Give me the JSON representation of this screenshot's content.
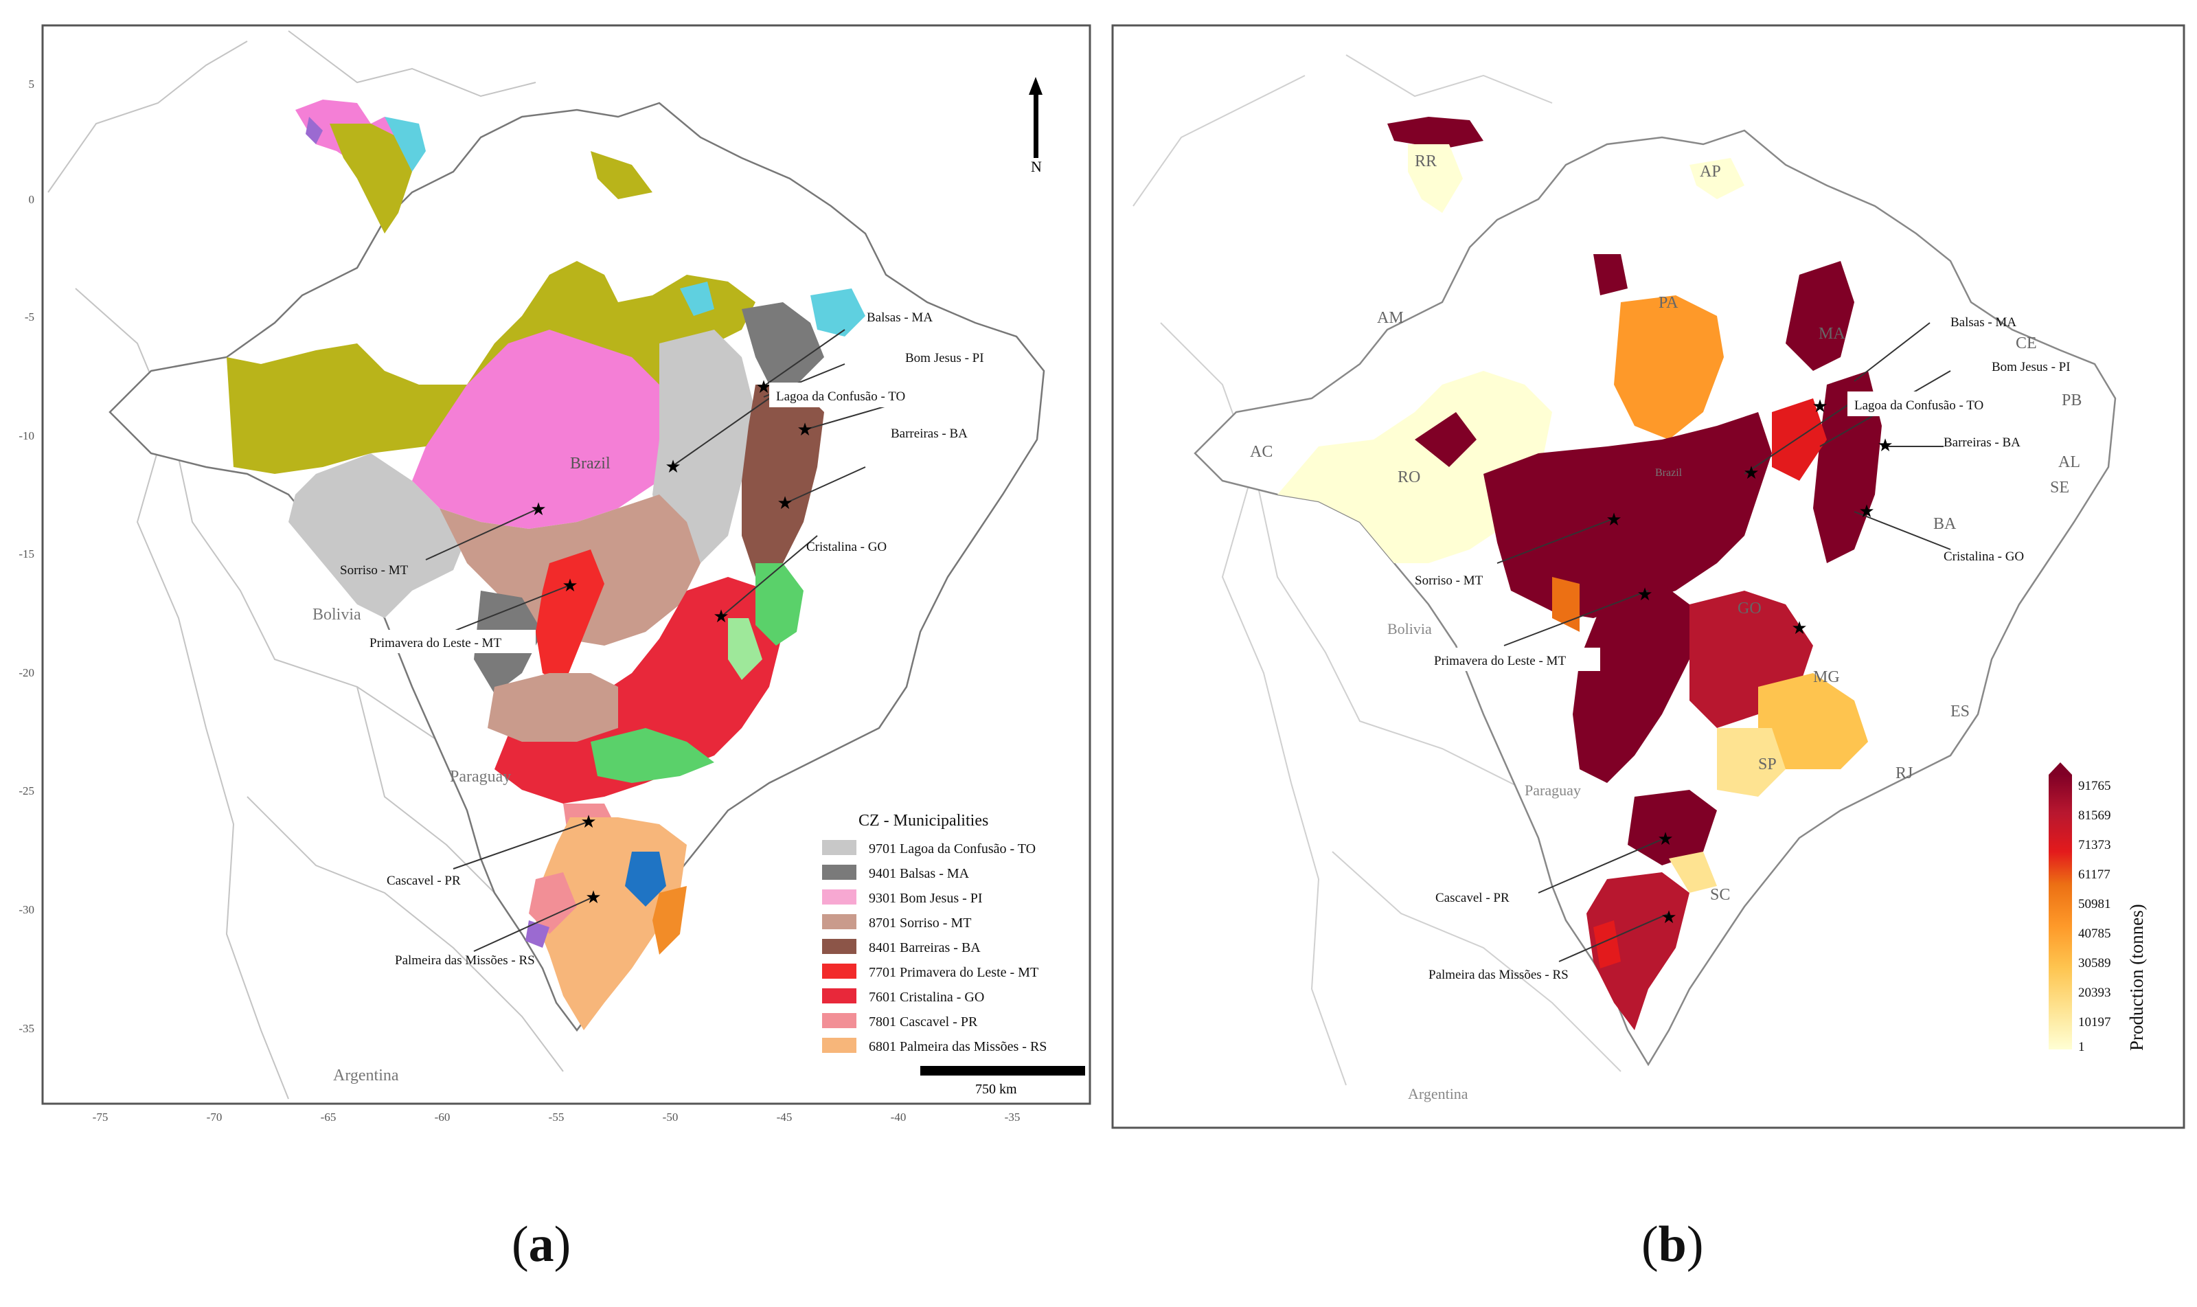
{
  "panel_a": {
    "letter": "a",
    "axis_y_ticks": [
      "5",
      "0",
      "-5",
      "-10",
      "-15",
      "-20",
      "-25",
      "-30",
      "-35"
    ],
    "axis_x_ticks": [
      "-75",
      "-70",
      "-65",
      "-60",
      "-55",
      "-50",
      "-45",
      "-40",
      "-35"
    ],
    "north_label": "N",
    "scale_label": "750 km",
    "countries": {
      "brazil": "Brazil",
      "bolivia": "Bolivia",
      "paraguay": "Paraguay",
      "argentina": "Argentina"
    },
    "cities": {
      "balsas": "Balsas - MA",
      "bom_jesus": "Bom Jesus - PI",
      "lagoa": "Lagoa da Confusão - TO",
      "barreiras": "Barreiras - BA",
      "cristalina": "Cristalina - GO",
      "sorriso": "Sorriso - MT",
      "primavera": "Primavera do Leste - MT",
      "cascavel": "Cascavel - PR",
      "palmeira": "Palmeira das Missões - RS"
    },
    "legend": {
      "title": "CZ - Municipalities",
      "items": [
        {
          "label": "9701 Lagoa da Confusão - TO",
          "color": "#c8c8c8"
        },
        {
          "label": "9401 Balsas - MA",
          "color": "#7a7a7a"
        },
        {
          "label": "9301 Bom Jesus - PI",
          "color": "#f7a8d2"
        },
        {
          "label": "8701 Sorriso - MT",
          "color": "#c99b8c"
        },
        {
          "label": "8401 Barreiras - BA",
          "color": "#8c5548"
        },
        {
          "label": "7701 Primavera do Leste - MT",
          "color": "#f22a2a"
        },
        {
          "label": "7601 Cristalina - GO",
          "color": "#e8283a"
        },
        {
          "label": "7801 Cascavel - PR",
          "color": "#f28f96"
        },
        {
          "label": "6801 Palmeira das Missões - RS",
          "color": "#f7b67a"
        }
      ]
    },
    "zone_colors": {
      "olive": "#b9b41a",
      "magenta": "#f47fd6",
      "cyan": "#5fd0e0",
      "green": "#5ad16a",
      "lightgreen": "#9ee89a",
      "orange": "#f28c28",
      "blue": "#1f74c4",
      "purple": "#9b6ad1"
    }
  },
  "panel_b": {
    "letter": "b",
    "countries": {
      "bolivia": "Bolivia",
      "paraguay": "Paraguay",
      "argentina": "Argentina",
      "brazil": "Brazil"
    },
    "states": [
      "RR",
      "AP",
      "AM",
      "PA",
      "MA",
      "CE",
      "PB",
      "AL",
      "SE",
      "AC",
      "RO",
      "BA",
      "GO",
      "MG",
      "ES",
      "RJ",
      "SP",
      "SC"
    ],
    "cities": {
      "balsas": "Balsas - MA",
      "bom_jesus": "Bom Jesus - PI",
      "lagoa": "Lagoa da Confusão - TO",
      "barreiras": "Barreiras - BA",
      "cristalina": "Cristalina - GO",
      "sorriso": "Sorriso - MT",
      "primavera": "Primavera do Leste - MT",
      "cascavel": "Cascavel - PR",
      "palmeira": "Palmeira das Missões - RS"
    },
    "colorbar": {
      "title": "Production (tonnes)",
      "ticks": [
        "91765",
        "81569",
        "71373",
        "61177",
        "50981",
        "40785",
        "30589",
        "20393",
        "10197",
        "1"
      ],
      "colors": [
        "#ffffd4",
        "#fee391",
        "#fec44f",
        "#fe9929",
        "#ec7014",
        "#e31a1c",
        "#b8172f",
        "#800026"
      ]
    }
  }
}
